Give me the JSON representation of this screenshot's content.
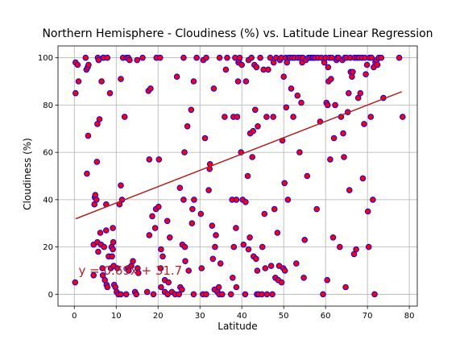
{
  "chart_data": {
    "type": "scatter",
    "title": "Northern Hemisphere - Cloudiness (%) vs. Latitude Linear Regression",
    "xlabel": "Latitude",
    "ylabel": "Cloudiness (%)",
    "xlim": [
      -3.9,
      81.9
    ],
    "ylim": [
      -5,
      105
    ],
    "xticks": [
      0,
      10,
      20,
      30,
      40,
      50,
      60,
      70,
      80
    ],
    "yticks": [
      0,
      20,
      40,
      60,
      80,
      100
    ],
    "grid": true,
    "marker_fill": "#ff0000",
    "marker_edge": "#0000ff",
    "line_color": "#b22222",
    "annotation": {
      "text": "y = 0.69x + 31.7",
      "x": 1,
      "y": 10,
      "color": "#b22222"
    },
    "regression": {
      "slope": 0.69,
      "intercept": 31.7,
      "x_range": [
        0.3,
        78.2
      ]
    },
    "points": [
      [
        0.2,
        5
      ],
      [
        0.3,
        85
      ],
      [
        0.3,
        98
      ],
      [
        0.8,
        97
      ],
      [
        1,
        90
      ],
      [
        2.7,
        100
      ],
      [
        2.9,
        95
      ],
      [
        3,
        51
      ],
      [
        3.2,
        96
      ],
      [
        3.4,
        97
      ],
      [
        3.3,
        67
      ],
      [
        4.6,
        21
      ],
      [
        4.6,
        8
      ],
      [
        4.8,
        38
      ],
      [
        4.9,
        41
      ],
      [
        5.0,
        42
      ],
      [
        5.3,
        40
      ],
      [
        5.4,
        56
      ],
      [
        5.5,
        22
      ],
      [
        5.5,
        72
      ],
      [
        5.6,
        100
      ],
      [
        5.7,
        18
      ],
      [
        5.8,
        99
      ],
      [
        6,
        74
      ],
      [
        6.2,
        26
      ],
      [
        6.5,
        90
      ],
      [
        6.4,
        21
      ],
      [
        6.7,
        11
      ],
      [
        6.8,
        8
      ],
      [
        6.9,
        100
      ],
      [
        7.0,
        100
      ],
      [
        7.1,
        20
      ],
      [
        7.3,
        6
      ],
      [
        7.6,
        38
      ],
      [
        7.6,
        27
      ],
      [
        7.7,
        4
      ],
      [
        7.9,
        3
      ],
      [
        7.9,
        100
      ],
      [
        8.2,
        16
      ],
      [
        8.5,
        85
      ],
      [
        8.7,
        11
      ],
      [
        8.9,
        20
      ],
      [
        9.0,
        16
      ],
      [
        9.2,
        19
      ],
      [
        9.2,
        28
      ],
      [
        9.3,
        22
      ],
      [
        9.4,
        12
      ],
      [
        9.5,
        4
      ],
      [
        9.8,
        3
      ],
      [
        10.1,
        1
      ],
      [
        10.3,
        11
      ],
      [
        10.5,
        0
      ],
      [
        10.8,
        38
      ],
      [
        11.1,
        91
      ],
      [
        11.1,
        46
      ],
      [
        11.1,
        0
      ],
      [
        11.4,
        40
      ],
      [
        11.6,
        100
      ],
      [
        12.0,
        75
      ],
      [
        12.4,
        0
      ],
      [
        12.5,
        100
      ],
      [
        12.8,
        11
      ],
      [
        12.9,
        100
      ],
      [
        13.0,
        10
      ],
      [
        13.2,
        99
      ],
      [
        13.6,
        12
      ],
      [
        14.0,
        14
      ],
      [
        14.5,
        1
      ],
      [
        14.8,
        0
      ],
      [
        15.0,
        99
      ],
      [
        15.1,
        11
      ],
      [
        15.3,
        9
      ],
      [
        16.3,
        100
      ],
      [
        17.4,
        1
      ],
      [
        17.7,
        86
      ],
      [
        17.9,
        25
      ],
      [
        17.9,
        57
      ],
      [
        18.2,
        87
      ],
      [
        18.6,
        33
      ],
      [
        18.9,
        0
      ],
      [
        19.3,
        28
      ],
      [
        19.5,
        36
      ],
      [
        19.6,
        100
      ],
      [
        20.1,
        37
      ],
      [
        20.2,
        57
      ],
      [
        20.5,
        100
      ],
      [
        20.6,
        11
      ],
      [
        20.7,
        19
      ],
      [
        20.7,
        3
      ],
      [
        21.1,
        16
      ],
      [
        21.6,
        6
      ],
      [
        21.6,
        1
      ],
      [
        22.2,
        31
      ],
      [
        22.3,
        0
      ],
      [
        22.5,
        5
      ],
      [
        22.8,
        24
      ],
      [
        23.3,
        1
      ],
      [
        24.1,
        0
      ],
      [
        24.5,
        92
      ],
      [
        25,
        0
      ],
      [
        25.2,
        45
      ],
      [
        25.3,
        3
      ],
      [
        25.7,
        2
      ],
      [
        25.8,
        21
      ],
      [
        26.1,
        40
      ],
      [
        26.1,
        100
      ],
      [
        26.3,
        60
      ],
      [
        26.4,
        20
      ],
      [
        26.5,
        14
      ],
      [
        27.0,
        71
      ],
      [
        27.3,
        10
      ],
      [
        27.9,
        78
      ],
      [
        28.1,
        30
      ],
      [
        28.2,
        36
      ],
      [
        28.5,
        0
      ],
      [
        28.5,
        90
      ],
      [
        28.6,
        40
      ],
      [
        29.2,
        100
      ],
      [
        30.2,
        34
      ],
      [
        30.4,
        11
      ],
      [
        30.7,
        0
      ],
      [
        30.8,
        99
      ],
      [
        31.2,
        66
      ],
      [
        31.5,
        100
      ],
      [
        31.5,
        0
      ],
      [
        32.1,
        44
      ],
      [
        32.3,
        53
      ],
      [
        32.4,
        55
      ],
      [
        32.9,
        29
      ],
      [
        33.1,
        15
      ],
      [
        33.3,
        87
      ],
      [
        33.5,
        2
      ],
      [
        33.6,
        20
      ],
      [
        33.8,
        25
      ],
      [
        34.2,
        1
      ],
      [
        34.5,
        3
      ],
      [
        34.6,
        0
      ],
      [
        34.7,
        100
      ],
      [
        34.9,
        13
      ],
      [
        35.3,
        0
      ],
      [
        35.9,
        75
      ],
      [
        36.2,
        95
      ],
      [
        36.5,
        100
      ],
      [
        37.4,
        0
      ],
      [
        37.7,
        40
      ],
      [
        37.8,
        7
      ],
      [
        38,
        75
      ],
      [
        38.1,
        20
      ],
      [
        38.4,
        100
      ],
      [
        38.6,
        28
      ],
      [
        38.7,
        3
      ],
      [
        38.7,
        40
      ],
      [
        38.9,
        75
      ],
      [
        39.1,
        90
      ],
      [
        39.2,
        98
      ],
      [
        39.3,
        99
      ],
      [
        39.5,
        100
      ],
      [
        39.8,
        60
      ],
      [
        40.0,
        97
      ],
      [
        40.2,
        40
      ],
      [
        40.4,
        21
      ],
      [
        40.8,
        0
      ],
      [
        40.9,
        39
      ],
      [
        41.0,
        90
      ],
      [
        41.4,
        50
      ],
      [
        41.6,
        19
      ],
      [
        41.6,
        99
      ],
      [
        41.9,
        24
      ],
      [
        42.0,
        68
      ],
      [
        42.3,
        100
      ],
      [
        42.5,
        58
      ],
      [
        42.7,
        69
      ],
      [
        42.8,
        16
      ],
      [
        43.0,
        97
      ],
      [
        43.2,
        78
      ],
      [
        43.4,
        15
      ],
      [
        43.5,
        96
      ],
      [
        43.7,
        10
      ],
      [
        43.6,
        0
      ],
      [
        43.8,
        71
      ],
      [
        44.0,
        0
      ],
      [
        44.4,
        100
      ],
      [
        44.8,
        0
      ],
      [
        44.9,
        20
      ],
      [
        45.2,
        95
      ],
      [
        45.4,
        34
      ],
      [
        45.6,
        11
      ],
      [
        45.9,
        75
      ],
      [
        46.0,
        0
      ],
      [
        46.3,
        95
      ],
      [
        46.8,
        100
      ],
      [
        47.0,
        12
      ],
      [
        47.3,
        0
      ],
      [
        47.5,
        75
      ],
      [
        47.6,
        98
      ],
      [
        47.8,
        36
      ],
      [
        48.0,
        7
      ],
      [
        48.2,
        100
      ],
      [
        48.5,
        26
      ],
      [
        48.7,
        6
      ],
      [
        48.9,
        12
      ],
      [
        49.1,
        99
      ],
      [
        49.4,
        100
      ],
      [
        49.5,
        5
      ],
      [
        49.7,
        65
      ],
      [
        49.9,
        11
      ],
      [
        50.0,
        92
      ],
      [
        50.2,
        47
      ],
      [
        50.3,
        10
      ],
      [
        50.5,
        100
      ],
      [
        50.6,
        79
      ],
      [
        50.8,
        98
      ],
      [
        51.0,
        40
      ],
      [
        51.3,
        100
      ],
      [
        51.5,
        100
      ],
      [
        51.8,
        87
      ],
      [
        52.1,
        100
      ],
      [
        52.3,
        75
      ],
      [
        52.6,
        100
      ],
      [
        53.0,
        13
      ],
      [
        53.3,
        84
      ],
      [
        53.4,
        100
      ],
      [
        53.8,
        60
      ],
      [
        54.0,
        100
      ],
      [
        54.2,
        81
      ],
      [
        54.4,
        98
      ],
      [
        54.6,
        100
      ],
      [
        54.8,
        7
      ],
      [
        55.0,
        23
      ],
      [
        55.3,
        99
      ],
      [
        55.6,
        50
      ],
      [
        55.9,
        100
      ],
      [
        56.3,
        100
      ],
      [
        56.8,
        100
      ],
      [
        57.1,
        100
      ],
      [
        57.5,
        100
      ],
      [
        57.9,
        36
      ],
      [
        58.2,
        100
      ],
      [
        58.7,
        73
      ],
      [
        59.0,
        100
      ],
      [
        59.4,
        0
      ],
      [
        59.7,
        98
      ],
      [
        60.0,
        100
      ],
      [
        60.2,
        81
      ],
      [
        60.4,
        6
      ],
      [
        60.5,
        80
      ],
      [
        60.6,
        96
      ],
      [
        60.7,
        90
      ],
      [
        60.9,
        100
      ],
      [
        61.1,
        57
      ],
      [
        61.3,
        91
      ],
      [
        61.5,
        100
      ],
      [
        61.8,
        24
      ],
      [
        62.0,
        66
      ],
      [
        62.3,
        80
      ],
      [
        62.6,
        99
      ],
      [
        62.8,
        100
      ],
      [
        63.1,
        100
      ],
      [
        63.4,
        20
      ],
      [
        63.7,
        75
      ],
      [
        64.0,
        99
      ],
      [
        64.2,
        68
      ],
      [
        64.4,
        58
      ],
      [
        64.6,
        100
      ],
      [
        64.8,
        3
      ],
      [
        65.0,
        100
      ],
      [
        65.3,
        77
      ],
      [
        65.5,
        85
      ],
      [
        65.7,
        44
      ],
      [
        65.9,
        100
      ],
      [
        66.0,
        94
      ],
      [
        66.3,
        92
      ],
      [
        66.5,
        94
      ],
      [
        66.8,
        17
      ],
      [
        66.9,
        100
      ],
      [
        67.3,
        19
      ],
      [
        67.5,
        100
      ],
      [
        67.8,
        83
      ],
      [
        68.0,
        100
      ],
      [
        68.3,
        85
      ],
      [
        68.7,
        100
      ],
      [
        68.9,
        49
      ],
      [
        69.2,
        72
      ],
      [
        69.4,
        100
      ],
      [
        69.6,
        93
      ],
      [
        69.9,
        97
      ],
      [
        70.1,
        35
      ],
      [
        70.3,
        20
      ],
      [
        70.5,
        100
      ],
      [
        70.8,
        75
      ],
      [
        71.0,
        100
      ],
      [
        71.3,
        40
      ],
      [
        71.5,
        96
      ],
      [
        71.7,
        0
      ],
      [
        71.9,
        98
      ],
      [
        72.2,
        99
      ],
      [
        72.4,
        97
      ],
      [
        72.7,
        100
      ],
      [
        73.3,
        100
      ],
      [
        73.8,
        83
      ],
      [
        77.6,
        100
      ],
      [
        78.4,
        75
      ]
    ]
  }
}
